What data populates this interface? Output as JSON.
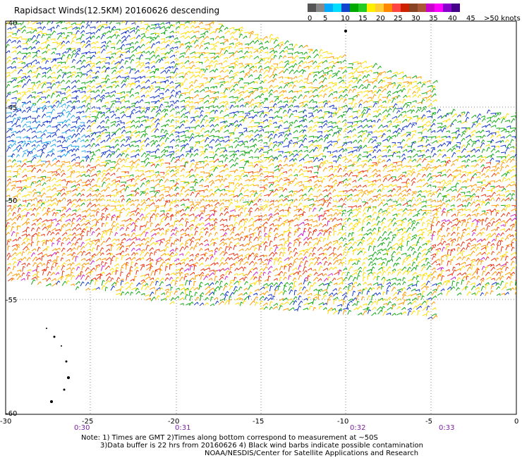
{
  "title": "Rapidsact Winds(12.5KM) 20160626 descending",
  "legend": {
    "colors": [
      "#555555",
      "#888888",
      "#00aaff",
      "#00ddff",
      "#1144cc",
      "#00aa00",
      "#22cc22",
      "#ffee00",
      "#ffcc33",
      "#ff8800",
      "#ff4444",
      "#cc2200",
      "#884422",
      "#aa5533",
      "#cc00cc",
      "#ff00ff",
      "#8800cc",
      "#440088"
    ],
    "labels": [
      "0",
      "5",
      "10",
      "15",
      "20",
      "25",
      "30",
      "35",
      "40",
      "45",
      ">50 knots"
    ]
  },
  "map": {
    "lat_labels": [
      "-40",
      "-45",
      "-50",
      "-55",
      "-60"
    ],
    "lon_labels": [
      "-30",
      "-25",
      "-20",
      "-15",
      "-10",
      "-5",
      "0"
    ],
    "time_labels": [
      "0:30",
      "0:31",
      "0:32",
      "0:33"
    ]
  },
  "notes": {
    "line1": "Note: 1) Times are GMT 2)Times along bottom correspond to measurement at ~50S",
    "line2": "3)Data buffer is 22 hrs from 20160626 4) Black wind barbs indicate possible contamination",
    "line3": "NOAA/NESDIS/Center for Satellite Applications and Research"
  }
}
